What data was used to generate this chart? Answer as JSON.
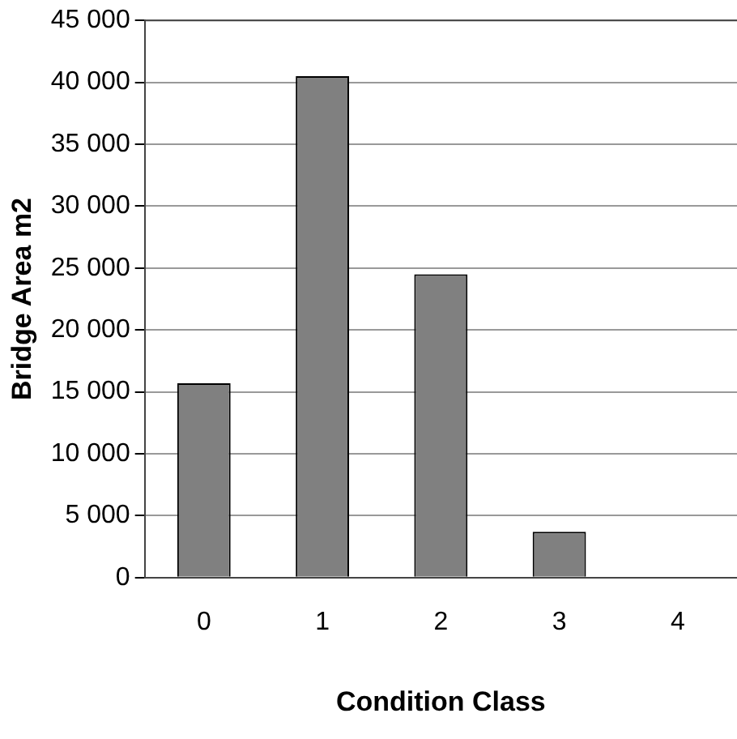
{
  "chart_data": {
    "type": "bar",
    "xlabel": "Condition Class",
    "ylabel": "Bridge Area m2",
    "categories": [
      "0",
      "1",
      "2",
      "3",
      "4"
    ],
    "values": [
      15700,
      40500,
      24500,
      3700,
      0
    ],
    "color": "#808080",
    "ylim": [
      0,
      45000
    ],
    "yticks": [
      {
        "value": 0,
        "label": "0"
      },
      {
        "value": 5000,
        "label": "5 000"
      },
      {
        "value": 10000,
        "label": "10 000"
      },
      {
        "value": 15000,
        "label": "15 000"
      },
      {
        "value": 20000,
        "label": "20 000"
      },
      {
        "value": 25000,
        "label": "25 000"
      },
      {
        "value": 30000,
        "label": "30 000"
      },
      {
        "value": 35000,
        "label": "35 000"
      },
      {
        "value": 40000,
        "label": "40 000"
      },
      {
        "value": 45000,
        "label": "45 000"
      }
    ],
    "grid": "y",
    "legend": false
  }
}
